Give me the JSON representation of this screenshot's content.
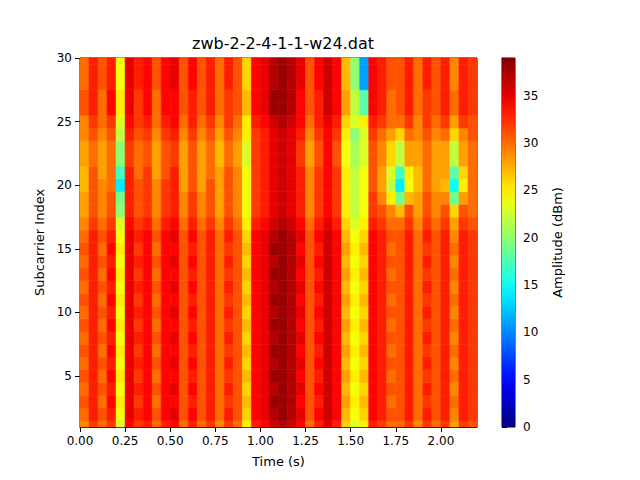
{
  "chart_data": {
    "type": "heatmap",
    "title": "zwb-2-2-4-1-1-w24.dat",
    "xlabel": "Time (s)",
    "ylabel": "Subcarrier Index",
    "xlim": [
      0,
      2.2
    ],
    "ylim": [
      1,
      30
    ],
    "xticks": [
      {
        "value": 0,
        "label": "0.00"
      },
      {
        "value": 0.25,
        "label": "0.25"
      },
      {
        "value": 0.5,
        "label": "0.50"
      },
      {
        "value": 0.75,
        "label": "0.75"
      },
      {
        "value": 1,
        "label": "1.00"
      },
      {
        "value": 1.25,
        "label": "1.25"
      },
      {
        "value": 1.5,
        "label": "1.50"
      },
      {
        "value": 1.75,
        "label": "1.75"
      },
      {
        "value": 2,
        "label": "2.00"
      }
    ],
    "yticks": [
      5,
      10,
      15,
      20,
      25,
      30
    ],
    "x": [
      0.025,
      0.075,
      0.125,
      0.175,
      0.225,
      0.275,
      0.325,
      0.375,
      0.425,
      0.475,
      0.525,
      0.575,
      0.625,
      0.675,
      0.725,
      0.775,
      0.825,
      0.875,
      0.925,
      0.975,
      1.025,
      1.075,
      1.125,
      1.175,
      1.225,
      1.275,
      1.325,
      1.375,
      1.425,
      1.475,
      1.525,
      1.575,
      1.625,
      1.675,
      1.725,
      1.775,
      1.825,
      1.875,
      1.925,
      1.975,
      2.025,
      2.075,
      2.125,
      2.175
    ],
    "y": [
      1,
      2,
      3,
      4,
      5,
      6,
      7,
      8,
      9,
      10,
      11,
      12,
      13,
      14,
      15,
      16,
      17,
      18,
      19,
      20,
      21,
      22,
      23,
      24,
      25,
      26,
      27,
      28,
      29,
      30
    ],
    "values": [
      [
        29,
        32,
        30,
        32,
        23,
        34,
        32,
        33,
        30,
        33,
        34,
        30,
        33,
        30,
        32,
        29,
        32,
        30,
        25,
        33,
        34,
        36,
        37,
        36,
        34,
        30,
        33,
        35,
        33,
        26,
        23,
        25,
        33,
        32,
        30,
        30,
        32,
        29,
        32,
        30,
        32,
        28,
        32,
        31
      ],
      [
        30,
        33,
        31,
        33,
        24,
        35,
        33,
        34,
        31,
        34,
        35,
        31,
        34,
        31,
        33,
        30,
        33,
        31,
        26,
        34,
        35,
        37,
        38,
        37,
        35,
        31,
        34,
        36,
        34,
        27,
        24,
        26,
        34,
        33,
        31,
        31,
        33,
        30,
        33,
        31,
        33,
        29,
        33,
        32
      ],
      [
        31,
        33,
        30,
        34,
        25,
        35,
        32,
        34,
        30,
        34,
        34,
        31,
        33,
        31,
        33,
        30,
        32,
        31,
        27,
        34,
        35,
        38,
        38,
        37,
        34,
        31,
        33,
        36,
        34,
        28,
        25,
        27,
        34,
        33,
        30,
        31,
        33,
        30,
        32,
        31,
        33,
        30,
        33,
        32
      ],
      [
        30,
        33,
        31,
        33,
        24,
        35,
        33,
        34,
        31,
        34,
        35,
        31,
        34,
        31,
        33,
        30,
        33,
        31,
        26,
        34,
        35,
        37,
        38,
        37,
        35,
        31,
        34,
        36,
        34,
        27,
        24,
        26,
        34,
        33,
        31,
        31,
        33,
        30,
        33,
        31,
        33,
        29,
        33,
        32
      ],
      [
        31,
        33,
        30,
        34,
        25,
        35,
        32,
        34,
        30,
        34,
        34,
        31,
        33,
        31,
        33,
        30,
        32,
        31,
        27,
        34,
        35,
        38,
        38,
        37,
        34,
        31,
        33,
        36,
        34,
        28,
        25,
        27,
        34,
        33,
        30,
        31,
        33,
        30,
        32,
        31,
        33,
        30,
        33,
        32
      ],
      [
        30,
        33,
        31,
        33,
        24,
        35,
        33,
        34,
        31,
        34,
        35,
        31,
        34,
        31,
        33,
        30,
        33,
        31,
        26,
        34,
        35,
        37,
        38,
        37,
        35,
        31,
        34,
        36,
        34,
        27,
        24,
        26,
        34,
        33,
        31,
        31,
        33,
        30,
        33,
        31,
        33,
        29,
        33,
        32
      ],
      [
        31,
        33,
        30,
        34,
        25,
        35,
        32,
        34,
        30,
        34,
        34,
        31,
        33,
        31,
        33,
        30,
        32,
        31,
        27,
        34,
        35,
        38,
        38,
        37,
        34,
        31,
        33,
        36,
        34,
        28,
        25,
        27,
        34,
        33,
        30,
        31,
        33,
        30,
        32,
        31,
        33,
        30,
        33,
        32
      ],
      [
        30,
        33,
        31,
        33,
        24,
        35,
        33,
        34,
        31,
        34,
        35,
        31,
        34,
        31,
        33,
        30,
        33,
        31,
        26,
        34,
        35,
        37,
        38,
        37,
        35,
        31,
        34,
        36,
        34,
        27,
        24,
        26,
        34,
        33,
        31,
        31,
        33,
        30,
        33,
        31,
        33,
        29,
        33,
        32
      ],
      [
        31,
        33,
        30,
        34,
        25,
        35,
        32,
        34,
        30,
        34,
        34,
        31,
        33,
        31,
        33,
        30,
        32,
        31,
        27,
        34,
        35,
        38,
        38,
        37,
        34,
        31,
        33,
        36,
        34,
        28,
        25,
        27,
        34,
        33,
        30,
        31,
        33,
        30,
        32,
        31,
        33,
        30,
        33,
        32
      ],
      [
        30,
        33,
        31,
        33,
        24,
        35,
        33,
        34,
        31,
        34,
        35,
        31,
        34,
        31,
        33,
        30,
        33,
        31,
        26,
        34,
        35,
        37,
        38,
        37,
        35,
        31,
        34,
        36,
        34,
        27,
        24,
        26,
        34,
        33,
        31,
        31,
        33,
        30,
        33,
        31,
        33,
        29,
        33,
        32
      ],
      [
        31,
        33,
        30,
        34,
        25,
        35,
        32,
        34,
        30,
        34,
        34,
        31,
        33,
        31,
        33,
        30,
        32,
        31,
        27,
        34,
        35,
        38,
        38,
        37,
        34,
        31,
        33,
        36,
        34,
        28,
        25,
        27,
        34,
        33,
        30,
        31,
        33,
        30,
        32,
        31,
        33,
        30,
        33,
        32
      ],
      [
        30,
        33,
        31,
        33,
        24,
        35,
        33,
        34,
        31,
        34,
        35,
        31,
        34,
        31,
        33,
        30,
        33,
        31,
        26,
        34,
        35,
        37,
        38,
        37,
        35,
        31,
        34,
        36,
        34,
        27,
        24,
        26,
        34,
        33,
        31,
        31,
        33,
        30,
        33,
        31,
        33,
        29,
        33,
        32
      ],
      [
        31,
        33,
        30,
        34,
        25,
        35,
        32,
        34,
        30,
        34,
        34,
        31,
        33,
        31,
        33,
        30,
        32,
        31,
        27,
        34,
        35,
        38,
        38,
        37,
        34,
        31,
        33,
        36,
        34,
        28,
        25,
        27,
        34,
        33,
        30,
        31,
        33,
        30,
        32,
        31,
        33,
        30,
        33,
        32
      ],
      [
        30,
        33,
        31,
        33,
        24,
        35,
        33,
        34,
        31,
        34,
        35,
        31,
        34,
        31,
        33,
        30,
        33,
        31,
        26,
        34,
        35,
        37,
        38,
        37,
        35,
        31,
        34,
        36,
        34,
        27,
        24,
        26,
        34,
        33,
        31,
        31,
        33,
        30,
        33,
        31,
        33,
        29,
        33,
        32
      ],
      [
        31,
        33,
        30,
        34,
        25,
        35,
        32,
        34,
        30,
        34,
        34,
        31,
        33,
        31,
        33,
        30,
        32,
        31,
        27,
        34,
        35,
        38,
        38,
        37,
        34,
        31,
        33,
        36,
        34,
        28,
        25,
        27,
        34,
        33,
        30,
        31,
        33,
        30,
        32,
        31,
        33,
        30,
        33,
        32
      ],
      [
        30,
        33,
        31,
        33,
        24,
        35,
        33,
        34,
        31,
        34,
        35,
        31,
        34,
        31,
        33,
        30,
        33,
        31,
        26,
        34,
        35,
        37,
        38,
        37,
        35,
        31,
        34,
        36,
        34,
        27,
        24,
        26,
        34,
        33,
        31,
        31,
        33,
        30,
        33,
        31,
        33,
        29,
        33,
        32
      ],
      [
        29,
        32,
        30,
        32,
        23,
        34,
        32,
        33,
        30,
        33,
        34,
        30,
        33,
        30,
        32,
        29,
        32,
        30,
        25,
        33,
        34,
        36,
        37,
        36,
        34,
        30,
        33,
        35,
        33,
        26,
        23,
        25,
        33,
        32,
        30,
        30,
        32,
        29,
        32,
        30,
        32,
        28,
        32,
        31
      ],
      [
        28,
        31,
        29,
        31,
        20,
        33,
        31,
        32,
        29,
        32,
        33,
        29,
        32,
        29,
        31,
        28,
        31,
        29,
        24,
        32,
        33,
        35,
        36,
        35,
        33,
        29,
        32,
        34,
        32,
        25,
        22,
        24,
        32,
        31,
        29,
        27,
        31,
        28,
        31,
        29,
        31,
        26,
        31,
        30
      ],
      [
        28,
        31,
        29,
        31,
        19,
        33,
        31,
        32,
        29,
        32,
        33,
        29,
        32,
        29,
        31,
        28,
        31,
        29,
        24,
        32,
        33,
        35,
        36,
        35,
        33,
        29,
        32,
        34,
        32,
        25,
        22,
        24,
        32,
        29,
        25,
        19,
        27,
        28,
        31,
        29,
        29,
        19,
        28,
        30
      ],
      [
        27,
        31,
        29,
        30,
        14,
        33,
        31,
        32,
        29,
        32,
        33,
        28,
        31,
        28,
        31,
        28,
        31,
        29,
        24,
        32,
        33,
        35,
        36,
        35,
        33,
        29,
        32,
        34,
        32,
        25,
        22,
        24,
        31,
        28,
        22,
        14,
        24,
        27,
        30,
        28,
        27,
        15,
        25,
        30
      ],
      [
        27,
        31,
        28,
        30,
        17,
        33,
        30,
        32,
        28,
        31,
        33,
        28,
        31,
        28,
        30,
        28,
        31,
        29,
        24,
        32,
        33,
        35,
        36,
        35,
        33,
        29,
        32,
        34,
        32,
        25,
        22,
        24,
        31,
        28,
        23,
        17,
        25,
        27,
        30,
        28,
        28,
        18,
        26,
        30
      ],
      [
        28,
        30,
        28,
        30,
        20,
        32,
        30,
        31,
        28,
        31,
        32,
        28,
        31,
        28,
        30,
        27,
        30,
        28,
        23,
        32,
        33,
        35,
        36,
        35,
        32,
        28,
        31,
        34,
        31,
        24,
        21,
        23,
        31,
        29,
        26,
        22,
        28,
        28,
        30,
        28,
        28,
        22,
        28,
        30
      ],
      [
        28,
        30,
        28,
        30,
        20,
        32,
        30,
        31,
        28,
        31,
        32,
        28,
        31,
        28,
        30,
        27,
        30,
        28,
        23,
        32,
        33,
        35,
        36,
        35,
        32,
        28,
        31,
        34,
        31,
        24,
        21,
        23,
        31,
        29,
        26,
        22,
        28,
        28,
        30,
        28,
        28,
        22,
        28,
        30
      ],
      [
        29,
        31,
        29,
        31,
        22,
        33,
        31,
        32,
        29,
        32,
        33,
        29,
        32,
        29,
        31,
        28,
        31,
        29,
        25,
        32,
        33,
        35,
        36,
        35,
        33,
        29,
        32,
        34,
        32,
        25,
        20,
        23,
        32,
        30,
        28,
        26,
        30,
        29,
        31,
        29,
        30,
        26,
        29,
        31
      ],
      [
        29,
        32,
        30,
        32,
        23,
        34,
        32,
        33,
        30,
        33,
        34,
        30,
        33,
        30,
        32,
        29,
        32,
        30,
        25,
        33,
        34,
        36,
        37,
        36,
        34,
        30,
        33,
        35,
        33,
        26,
        23,
        25,
        33,
        32,
        30,
        30,
        32,
        29,
        32,
        30,
        32,
        28,
        32,
        31
      ],
      [
        31,
        33,
        30,
        34,
        25,
        35,
        32,
        34,
        30,
        34,
        34,
        31,
        33,
        31,
        33,
        30,
        32,
        31,
        27,
        34,
        35,
        38,
        38,
        37,
        34,
        31,
        33,
        36,
        34,
        28,
        22,
        18,
        34,
        33,
        30,
        31,
        33,
        30,
        32,
        31,
        33,
        30,
        33,
        32
      ],
      [
        31,
        33,
        30,
        34,
        25,
        35,
        32,
        34,
        30,
        34,
        34,
        31,
        33,
        31,
        33,
        30,
        32,
        31,
        27,
        34,
        35,
        38,
        38,
        37,
        34,
        31,
        33,
        36,
        34,
        28,
        22,
        18,
        34,
        33,
        30,
        31,
        33,
        30,
        32,
        31,
        33,
        30,
        33,
        32
      ],
      [
        30,
        33,
        31,
        33,
        24,
        35,
        33,
        34,
        31,
        34,
        35,
        31,
        34,
        31,
        33,
        30,
        33,
        31,
        26,
        34,
        35,
        37,
        38,
        37,
        35,
        31,
        34,
        36,
        34,
        27,
        20,
        11,
        34,
        33,
        31,
        31,
        33,
        30,
        33,
        31,
        33,
        29,
        33,
        32
      ],
      [
        30,
        33,
        31,
        33,
        24,
        35,
        33,
        34,
        31,
        34,
        35,
        31,
        34,
        31,
        33,
        30,
        33,
        31,
        26,
        34,
        35,
        37,
        38,
        37,
        35,
        31,
        34,
        36,
        34,
        27,
        20,
        11,
        34,
        33,
        31,
        31,
        33,
        30,
        33,
        31,
        33,
        29,
        33,
        32
      ],
      [
        30,
        33,
        31,
        33,
        24,
        35,
        33,
        34,
        31,
        34,
        35,
        31,
        34,
        31,
        33,
        30,
        33,
        31,
        26,
        34,
        35,
        37,
        38,
        37,
        35,
        31,
        34,
        36,
        34,
        27,
        20,
        11,
        34,
        33,
        31,
        31,
        33,
        30,
        33,
        31,
        33,
        29,
        33,
        32
      ]
    ],
    "colorbar": {
      "label": "Amplitude (dBm)",
      "range": [
        0,
        39
      ],
      "ticks": [
        0,
        5,
        10,
        15,
        20,
        25,
        30,
        35
      ]
    }
  }
}
